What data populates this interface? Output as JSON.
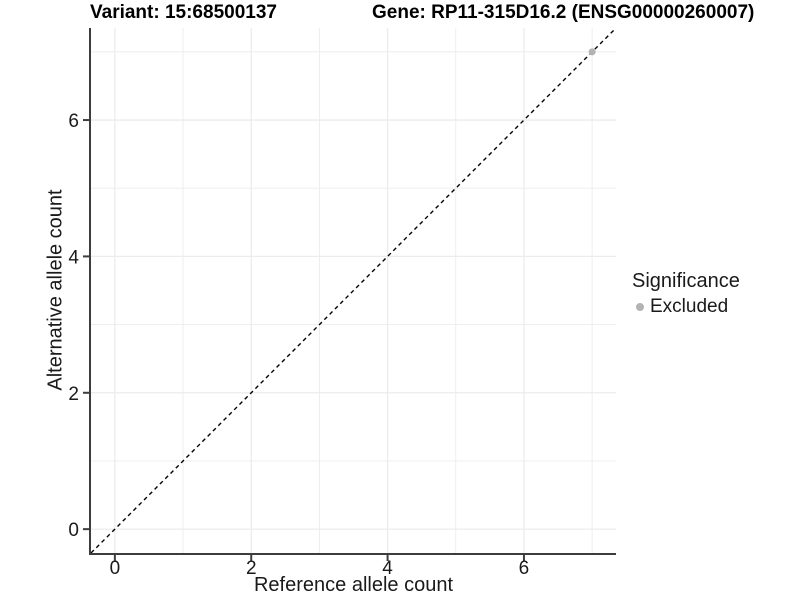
{
  "figure": {
    "background": "#ffffff"
  },
  "titles": {
    "variant": "Variant: 15:68500137",
    "gene": "Gene: RP11-315D16.2 (ENSG00000260007)"
  },
  "chart_data": {
    "type": "scatter",
    "title_left": "Variant: 15:68500137",
    "title_right": "Gene: RP11-315D16.2 (ENSG00000260007)",
    "xlabel": "Reference allele count",
    "ylabel": "Alternative allele count",
    "xlim": [
      -0.35,
      7.35
    ],
    "ylim": [
      -0.35,
      7.35
    ],
    "x_ticks": [
      0,
      2,
      4,
      6
    ],
    "y_ticks": [
      0,
      2,
      4,
      6
    ],
    "grid_values": [
      0,
      1,
      2,
      3,
      4,
      5,
      6,
      7
    ],
    "grid": "on",
    "identity_line": {
      "style": "dashed",
      "color": "#000000",
      "from": [
        -0.35,
        -0.35
      ],
      "to": [
        7.35,
        7.35
      ]
    },
    "series": [
      {
        "name": "Excluded",
        "color": "#b3b3b3",
        "points": [
          {
            "x": 7,
            "y": 7
          }
        ]
      }
    ],
    "legend": {
      "title": "Significance",
      "position": "right",
      "items": [
        {
          "label": "Excluded",
          "color": "#b3b3b3",
          "marker": "circle"
        }
      ]
    }
  },
  "colors": {
    "axis": "#3d3d3d",
    "grid": "#ececec",
    "tick_text": "#1a1a1a",
    "title_text": "#000000",
    "point": "#b3b3b3"
  }
}
